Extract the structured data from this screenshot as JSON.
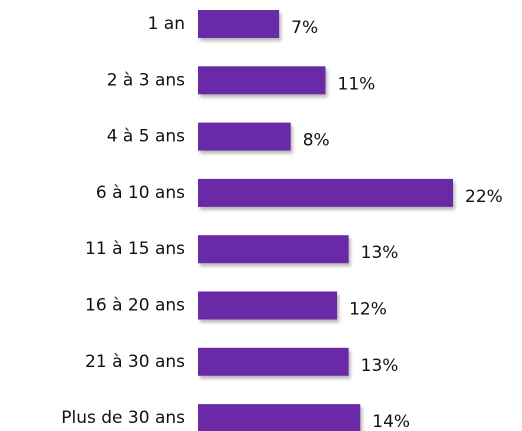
{
  "chart_data": {
    "type": "bar",
    "orientation": "horizontal",
    "categories": [
      "1 an",
      "2 à 3 ans",
      "4 à 5 ans",
      "6 à 10 ans",
      "11 à 15 ans",
      "16 à 20 ans",
      "21 à 30 ans",
      "Plus de 30 ans"
    ],
    "values": [
      7,
      11,
      8,
      22,
      13,
      12,
      13,
      14
    ],
    "value_labels": [
      "7%",
      "11%",
      "8%",
      "22%",
      "13%",
      "12%",
      "13%",
      "14%"
    ],
    "color": "#6a2ca8"
  }
}
